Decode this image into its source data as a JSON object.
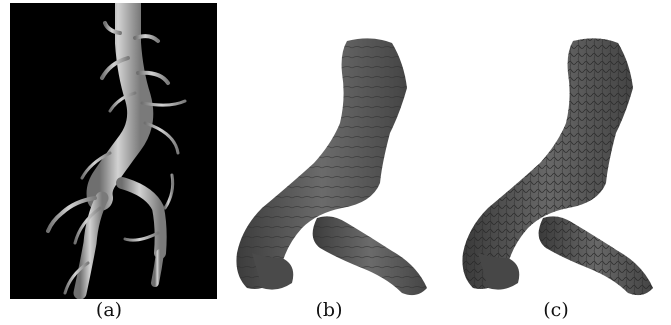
{
  "figure": {
    "panels": [
      {
        "id": "a",
        "caption": "(a)"
      },
      {
        "id": "b",
        "caption": "(b)"
      },
      {
        "id": "c",
        "caption": "(c)"
      }
    ]
  }
}
